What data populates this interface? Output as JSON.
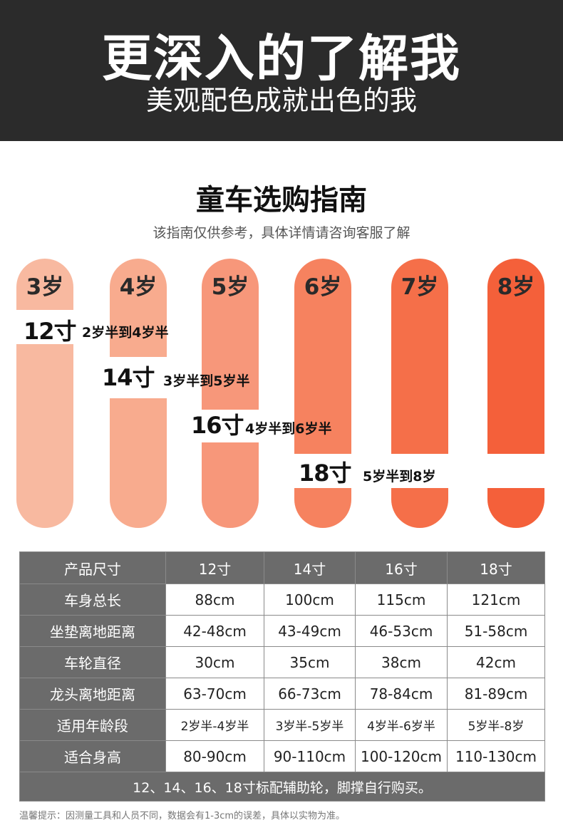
{
  "header": {
    "title": "更深入的了解我",
    "subtitle": "美观配色成就出色的我"
  },
  "guide": {
    "title": "童车选购指南",
    "subtitle": "该指南仅供参考，具体详情请咨询客服了解"
  },
  "ages": [
    "3岁",
    "4岁",
    "5岁",
    "6岁",
    "7岁",
    "8岁"
  ],
  "age_colors": [
    "#f8b9a0",
    "#f8ab8e",
    "#f7977a",
    "#f6825f",
    "#f56f49",
    "#f4603a"
  ],
  "size_groups": [
    {
      "size": "12寸",
      "range": "2岁半到4岁半"
    },
    {
      "size": "14寸",
      "range": "3岁半到5岁半"
    },
    {
      "size": "16寸",
      "range": "4岁半到6岁半"
    },
    {
      "size": "18寸",
      "range": "5岁半到8岁"
    }
  ],
  "table": {
    "header": [
      "产品尺寸",
      "12寸",
      "14寸",
      "16寸",
      "18寸"
    ],
    "rows": [
      [
        "车身总长",
        "88cm",
        "100cm",
        "115cm",
        "121cm"
      ],
      [
        "坐垫离地距离",
        "42-48cm",
        "43-49cm",
        "46-53cm",
        "51-58cm"
      ],
      [
        "车轮直径",
        "30cm",
        "35cm",
        "38cm",
        "42cm"
      ],
      [
        "龙头离地距离",
        "63-70cm",
        "66-73cm",
        "78-84cm",
        "81-89cm"
      ],
      [
        "适用年龄段",
        "2岁半-4岁半",
        "3岁半-5岁半",
        "4岁半-6岁半",
        "5岁半-8岁"
      ],
      [
        "适合身高",
        "80-90cm",
        "90-110cm",
        "100-120cm",
        "110-130cm"
      ]
    ],
    "footer": "12、14、16、18寸标配辅助轮，脚撑自行购买。"
  },
  "note": "温馨提示：因测量工具和人员不同，数据会有1-3cm的误差，具体以实物为准。"
}
